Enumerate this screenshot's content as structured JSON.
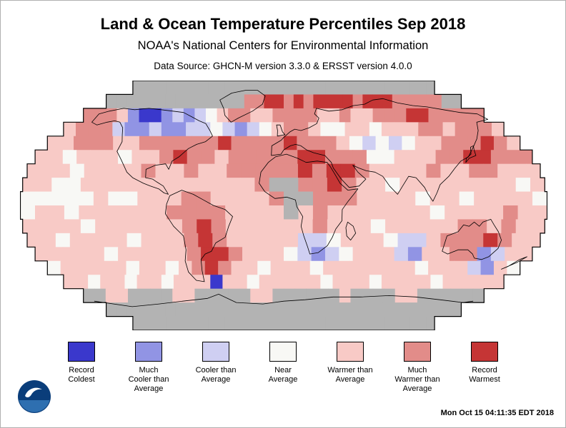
{
  "header": {
    "title": "Land & Ocean Temperature Percentiles Sep 2018",
    "subtitle": "NOAA's National Centers for Environmental Information",
    "datasource": "Data Source: GHCN-M version 3.3.0 & ERSST version 4.0.0"
  },
  "footer": {
    "timestamp": "Mon Oct 15 04:11:35 EDT 2018"
  },
  "legend": {
    "items": [
      {
        "code": "0",
        "name": "record-coldest",
        "lines": [
          "Record",
          "Coldest"
        ]
      },
      {
        "code": "1",
        "name": "much-cooler",
        "lines": [
          "Much",
          "Cooler than",
          "Average"
        ]
      },
      {
        "code": "2",
        "name": "cooler",
        "lines": [
          "Cooler than",
          "Average"
        ]
      },
      {
        "code": "3",
        "name": "near-average",
        "lines": [
          "Near",
          "Average"
        ]
      },
      {
        "code": "4",
        "name": "warmer",
        "lines": [
          "Warmer than",
          "Average"
        ]
      },
      {
        "code": "5",
        "name": "much-warmer",
        "lines": [
          "Much",
          "Warmer than",
          "Average"
        ]
      },
      {
        "code": "6",
        "name": "record-warmest",
        "lines": [
          "Record",
          "Warmest"
        ]
      }
    ]
  },
  "chart_data": {
    "type": "heatmap",
    "projection": "robinson-like",
    "lat_range": [
      90,
      -90
    ],
    "lon_range": [
      -180,
      180
    ],
    "cell_size_deg": 10,
    "palette": {
      "G": "#b3b3b3",
      "0": "#3a38cc",
      "1": "#9194e4",
      "2": "#cfcff2",
      "3": "#f8f8f5",
      "4": "#f8cac6",
      "5": "#e28c89",
      "6": "#c53535"
    },
    "codes": {
      "G": "missing-data",
      "0": "record-coldest",
      "1": "much-cooler-than-average",
      "2": "cooler-than-average",
      "3": "near-average",
      "4": "warmer-than-average",
      "5": "much-warmer-than-average",
      "6": "record-warmest"
    },
    "grid": {
      "rows": 18,
      "cols": 36,
      "cells": [
        "GGGGGGGGGGGGGGGGGGGGGGGGGGGGGGGGGGGG",
        "GGGGGGGGGGGGGG55665656666566655555GG",
        "555410012123455445555445445556655555",
        "455521121122321234554334434445545554",
        "445554455555565555655543232344555654",
        "443444344565545555566555334445566555",
        "444344445445445555565665444454455444",
        "44334444444444445GG55654434444444434",
        "333334334445544445GG5554444344344443",
        "344344444455554444G45444444434444544",
        "444434444445654444445444344444554544",
        "443444434445654444422344432245556544",
        "444443444445665444321234442144551244",
        "344444344345654434443444444434442143",
        "443443443444044344444344434444344444",
        "GG44GGGG44GGGGG44GGGGGG4GGGG44GGGGGG",
        "GGGGGGGGGGGGGGGGGGGGGGGGGGGGGGGGGGGG",
        "GGGGGGGGGGGGGGGGGGGGGGGGGGGGGGGGGGGG"
      ]
    },
    "outlines": {
      "polygons": [
        [
          [
            -168,
            66
          ],
          [
            -164,
            60
          ],
          [
            -157,
            58
          ],
          [
            -151,
            60
          ],
          [
            -146,
            61
          ],
          [
            -140,
            60
          ],
          [
            -133,
            56
          ],
          [
            -128,
            51
          ],
          [
            -124,
            46
          ],
          [
            -123,
            39
          ],
          [
            -117,
            33
          ],
          [
            -110,
            24
          ],
          [
            -105,
            20
          ],
          [
            -97,
            16
          ],
          [
            -92,
            14
          ],
          [
            -86,
            12
          ],
          [
            -82,
            9
          ],
          [
            -79,
            8
          ],
          [
            -83,
            14
          ],
          [
            -88,
            17
          ],
          [
            -91,
            19
          ],
          [
            -96,
            20
          ],
          [
            -97,
            26
          ],
          [
            -91,
            29
          ],
          [
            -84,
            30
          ],
          [
            -81,
            26
          ],
          [
            -80,
            32
          ],
          [
            -76,
            35
          ],
          [
            -71,
            41
          ],
          [
            -66,
            44
          ],
          [
            -60,
            46
          ],
          [
            -56,
            50
          ],
          [
            -60,
            54
          ],
          [
            -66,
            59
          ],
          [
            -73,
            61
          ],
          [
            -82,
            64
          ],
          [
            -92,
            67
          ],
          [
            -103,
            68
          ],
          [
            -115,
            69
          ],
          [
            -128,
            70
          ],
          [
            -140,
            69
          ],
          [
            -152,
            70
          ],
          [
            -162,
            68
          ]
        ],
        [
          [
            -45,
            60
          ],
          [
            -53,
            65
          ],
          [
            -57,
            70
          ],
          [
            -66,
            76
          ],
          [
            -58,
            81
          ],
          [
            -44,
            83
          ],
          [
            -30,
            83
          ],
          [
            -20,
            79
          ],
          [
            -21,
            73
          ],
          [
            -29,
            68
          ],
          [
            -40,
            63
          ]
        ],
        [
          [
            -78,
            7
          ],
          [
            -80,
            1
          ],
          [
            -81,
            -6
          ],
          [
            -76,
            -15
          ],
          [
            -70,
            -22
          ],
          [
            -70,
            -32
          ],
          [
            -73,
            -40
          ],
          [
            -74,
            -48
          ],
          [
            -71,
            -54
          ],
          [
            -65,
            -55
          ],
          [
            -63,
            -47
          ],
          [
            -61,
            -39
          ],
          [
            -57,
            -35
          ],
          [
            -52,
            -33
          ],
          [
            -48,
            -27
          ],
          [
            -41,
            -23
          ],
          [
            -38,
            -15
          ],
          [
            -35,
            -8
          ],
          [
            -40,
            -3
          ],
          [
            -48,
            0
          ],
          [
            -55,
            4
          ],
          [
            -62,
            8
          ],
          [
            -70,
            11
          ]
        ],
        [
          [
            -6,
            35
          ],
          [
            -11,
            31
          ],
          [
            -16,
            24
          ],
          [
            -17,
            16
          ],
          [
            -13,
            10
          ],
          [
            -6,
            5
          ],
          [
            2,
            6
          ],
          [
            8,
            4
          ],
          [
            9,
            -1
          ],
          [
            13,
            -8
          ],
          [
            12,
            -15
          ],
          [
            14,
            -22
          ],
          [
            17,
            -30
          ],
          [
            19,
            -35
          ],
          [
            25,
            -34
          ],
          [
            31,
            -29
          ],
          [
            34,
            -23
          ],
          [
            36,
            -17
          ],
          [
            40,
            -11
          ],
          [
            40,
            -3
          ],
          [
            44,
            3
          ],
          [
            48,
            8
          ],
          [
            51,
            12
          ],
          [
            44,
            11
          ],
          [
            39,
            16
          ],
          [
            36,
            22
          ],
          [
            33,
            28
          ],
          [
            31,
            31
          ],
          [
            24,
            32
          ],
          [
            16,
            31
          ],
          [
            10,
            34
          ],
          [
            2,
            37
          ]
        ],
        [
          [
            -9,
            36
          ],
          [
            -9,
            43
          ],
          [
            -2,
            47
          ],
          [
            0,
            49
          ],
          [
            5,
            53
          ],
          [
            9,
            55
          ],
          [
            14,
            54
          ],
          [
            21,
            56
          ],
          [
            28,
            59
          ],
          [
            31,
            63
          ],
          [
            28,
            66
          ],
          [
            31,
            70
          ],
          [
            42,
            68
          ],
          [
            55,
            69
          ],
          [
            68,
            72
          ],
          [
            80,
            73
          ],
          [
            92,
            76
          ],
          [
            104,
            77
          ],
          [
            114,
            74
          ],
          [
            126,
            72
          ],
          [
            138,
            71
          ],
          [
            150,
            69
          ],
          [
            162,
            67
          ],
          [
            176,
            66
          ],
          [
            178,
            62
          ],
          [
            165,
            60
          ],
          [
            158,
            54
          ],
          [
            150,
            48
          ],
          [
            142,
            42
          ],
          [
            134,
            35
          ],
          [
            127,
            32
          ],
          [
            121,
            27
          ],
          [
            115,
            21
          ],
          [
            108,
            15
          ],
          [
            105,
            9
          ],
          [
            102,
            3
          ],
          [
            99,
            8
          ],
          [
            97,
            13
          ],
          [
            92,
            20
          ],
          [
            87,
            21
          ],
          [
            82,
            14
          ],
          [
            78,
            8
          ],
          [
            73,
            14
          ],
          [
            69,
            21
          ],
          [
            64,
            24
          ],
          [
            58,
            25
          ],
          [
            53,
            27
          ],
          [
            49,
            29
          ],
          [
            52,
            24
          ],
          [
            57,
            19
          ],
          [
            52,
            14
          ],
          [
            45,
            13
          ],
          [
            40,
            19
          ],
          [
            35,
            27
          ],
          [
            34,
            31
          ],
          [
            30,
            36
          ],
          [
            26,
            37
          ],
          [
            22,
            38
          ],
          [
            17,
            40
          ],
          [
            13,
            43
          ],
          [
            9,
            44
          ],
          [
            5,
            43
          ],
          [
            0,
            40
          ],
          [
            -2,
            37
          ]
        ],
        [
          [
            114,
            -22
          ],
          [
            114,
            -33
          ],
          [
            119,
            -35
          ],
          [
            125,
            -32
          ],
          [
            132,
            -32
          ],
          [
            137,
            -35
          ],
          [
            140,
            -38
          ],
          [
            146,
            -39
          ],
          [
            150,
            -37
          ],
          [
            153,
            -31
          ],
          [
            153,
            -25
          ],
          [
            149,
            -19
          ],
          [
            145,
            -14
          ],
          [
            142,
            -10
          ],
          [
            137,
            -12
          ],
          [
            135,
            -15
          ],
          [
            131,
            -12
          ],
          [
            128,
            -15
          ],
          [
            124,
            -14
          ],
          [
            121,
            -19
          ]
        ],
        [
          [
            167,
            -46
          ],
          [
            174,
            -41
          ],
          [
            178,
            -37
          ],
          [
            174,
            -39
          ],
          [
            170,
            -44
          ]
        ],
        [
          [
            44,
            -12
          ],
          [
            48,
            -15
          ],
          [
            50,
            -20
          ],
          [
            47,
            -25
          ],
          [
            44,
            -22
          ],
          [
            43,
            -16
          ]
        ],
        [
          [
            130,
            31
          ],
          [
            134,
            34
          ],
          [
            140,
            36
          ],
          [
            141,
            40
          ],
          [
            143,
            43
          ],
          [
            140,
            42
          ],
          [
            137,
            37
          ],
          [
            132,
            34
          ]
        ],
        [
          [
            -5,
            50
          ],
          [
            -5,
            54
          ],
          [
            -6,
            58
          ],
          [
            -3,
            58
          ],
          [
            -1,
            53
          ],
          [
            1,
            51
          ]
        ]
      ],
      "lines": [
        [
          [
            -178,
            -69
          ],
          [
            -150,
            -73
          ],
          [
            -120,
            -71
          ],
          [
            -95,
            -69
          ],
          [
            -70,
            -67
          ],
          [
            -58,
            -64
          ],
          [
            -45,
            -70
          ],
          [
            -20,
            -71
          ],
          [
            0,
            -69
          ],
          [
            20,
            -68
          ],
          [
            45,
            -66
          ],
          [
            70,
            -66
          ],
          [
            95,
            -65
          ],
          [
            120,
            -66
          ],
          [
            145,
            -68
          ],
          [
            170,
            -70
          ],
          [
            178,
            -69
          ]
        ]
      ]
    }
  }
}
